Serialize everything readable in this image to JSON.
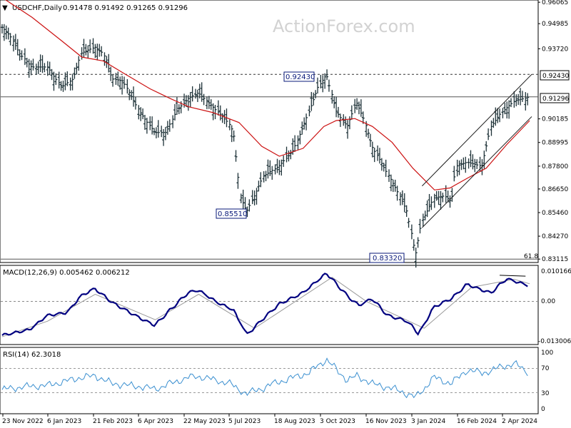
{
  "header": {
    "symbol_title": "USDCHF,Daily",
    "ohlc": "0.91478 0.91492 0.91265 0.91296"
  },
  "watermark": "ActionForex.com",
  "colors": {
    "price_bars": "#1e3238",
    "moving_average": "#cc1111",
    "channel": "#1a1a1a",
    "macd_line": "#000080",
    "macd_signal": "#999999",
    "rsi_line": "#3a8fd0",
    "label_text": "#0a1a7a"
  },
  "labels": {
    "swing_high": "0.92430",
    "swing_low_1": "0.85510",
    "swing_low_2": "0.83320",
    "fib_level": "61.8",
    "current_price_tag": "0.91296",
    "resistance_tag": "0.92430"
  },
  "macd_panel": {
    "title": "MACD(12,26,9) 0.005462 0.006212",
    "ticks": [
      "0.010166",
      "0.00",
      "-0.013006"
    ]
  },
  "rsi_panel": {
    "title": "RSI(14) 62.3018",
    "ticks": [
      "100",
      "70",
      "30",
      "0"
    ]
  },
  "chart_data": [
    {
      "type": "candlestick",
      "symbol": "USDCHF",
      "timeframe": "Daily",
      "y_ticks": [
        "0.96065",
        "0.94985",
        "0.93720",
        "0.92430",
        "0.91296",
        "0.90185",
        "0.88995",
        "0.87800",
        "0.86650",
        "0.85460",
        "0.84270",
        "0.83115"
      ],
      "ylim": [
        0.8305,
        0.9607
      ],
      "x_ticks": [
        "23 Nov 2022",
        "6 Jan 2023",
        "21 Feb 2023",
        "6 Apr 2023",
        "22 May 2023",
        "5 Jul 2023",
        "18 Aug 2023",
        "3 Oct 2023",
        "16 Nov 2023",
        "3 Jan 2024",
        "16 Feb 2024",
        "2 Apr 2024"
      ],
      "close_path": [
        {
          "date": "2022-11-23",
          "close": 0.948
        },
        {
          "date": "2022-12-01",
          "close": 0.944
        },
        {
          "date": "2022-12-10",
          "close": 0.935
        },
        {
          "date": "2022-12-22",
          "close": 0.928
        },
        {
          "date": "2023-01-06",
          "close": 0.928
        },
        {
          "date": "2023-01-20",
          "close": 0.918
        },
        {
          "date": "2023-01-31",
          "close": 0.922
        },
        {
          "date": "2023-02-08",
          "close": 0.935
        },
        {
          "date": "2023-02-21",
          "close": 0.938
        },
        {
          "date": "2023-03-01",
          "close": 0.935
        },
        {
          "date": "2023-03-10",
          "close": 0.922
        },
        {
          "date": "2023-03-20",
          "close": 0.921
        },
        {
          "date": "2023-04-06",
          "close": 0.905
        },
        {
          "date": "2023-04-20",
          "close": 0.895
        },
        {
          "date": "2023-05-01",
          "close": 0.895
        },
        {
          "date": "2023-05-10",
          "close": 0.905
        },
        {
          "date": "2023-05-22",
          "close": 0.912
        },
        {
          "date": "2023-06-01",
          "close": 0.915
        },
        {
          "date": "2023-06-15",
          "close": 0.908
        },
        {
          "date": "2023-06-30",
          "close": 0.9
        },
        {
          "date": "2023-07-05",
          "close": 0.895
        },
        {
          "date": "2023-07-12",
          "close": 0.862
        },
        {
          "date": "2023-07-18",
          "close": 0.8551
        },
        {
          "date": "2023-07-27",
          "close": 0.865
        },
        {
          "date": "2023-08-03",
          "close": 0.873
        },
        {
          "date": "2023-08-18",
          "close": 0.878
        },
        {
          "date": "2023-09-01",
          "close": 0.886
        },
        {
          "date": "2023-09-15",
          "close": 0.904
        },
        {
          "date": "2023-09-25",
          "close": 0.918
        },
        {
          "date": "2023-10-03",
          "close": 0.9243
        },
        {
          "date": "2023-10-12",
          "close": 0.906
        },
        {
          "date": "2023-10-23",
          "close": 0.898
        },
        {
          "date": "2023-11-01",
          "close": 0.91
        },
        {
          "date": "2023-11-08",
          "close": 0.902
        },
        {
          "date": "2023-11-16",
          "close": 0.888
        },
        {
          "date": "2023-11-28",
          "close": 0.877
        },
        {
          "date": "2023-12-10",
          "close": 0.866
        },
        {
          "date": "2023-12-20",
          "close": 0.855
        },
        {
          "date": "2023-12-28",
          "close": 0.8332
        },
        {
          "date": "2024-01-03",
          "close": 0.85
        },
        {
          "date": "2024-01-15",
          "close": 0.862
        },
        {
          "date": "2024-01-25",
          "close": 0.863
        },
        {
          "date": "2024-02-01",
          "close": 0.86
        },
        {
          "date": "2024-02-05",
          "close": 0.878
        },
        {
          "date": "2024-02-16",
          "close": 0.88
        },
        {
          "date": "2024-03-01",
          "close": 0.878
        },
        {
          "date": "2024-03-10",
          "close": 0.898
        },
        {
          "date": "2024-03-20",
          "close": 0.905
        },
        {
          "date": "2024-04-02",
          "close": 0.911
        },
        {
          "date": "2024-04-10",
          "close": 0.912
        },
        {
          "date": "2024-04-16",
          "close": 0.913
        }
      ],
      "moving_average": [
        {
          "date": "2022-11-23",
          "value": 0.963
        },
        {
          "date": "2022-12-22",
          "value": 0.953
        },
        {
          "date": "2023-01-20",
          "value": 0.941
        },
        {
          "date": "2023-02-08",
          "value": 0.933
        },
        {
          "date": "2023-03-01",
          "value": 0.931
        },
        {
          "date": "2023-03-20",
          "value": 0.925
        },
        {
          "date": "2023-04-15",
          "value": 0.917
        },
        {
          "date": "2023-05-05",
          "value": 0.912
        },
        {
          "date": "2023-05-22",
          "value": 0.908
        },
        {
          "date": "2023-06-15",
          "value": 0.905
        },
        {
          "date": "2023-07-10",
          "value": 0.9
        },
        {
          "date": "2023-08-01",
          "value": 0.888
        },
        {
          "date": "2023-08-18",
          "value": 0.883
        },
        {
          "date": "2023-09-10",
          "value": 0.887
        },
        {
          "date": "2023-09-30",
          "value": 0.898
        },
        {
          "date": "2023-10-12",
          "value": 0.901
        },
        {
          "date": "2023-10-30",
          "value": 0.902
        },
        {
          "date": "2023-11-16",
          "value": 0.898
        },
        {
          "date": "2023-12-05",
          "value": 0.89
        },
        {
          "date": "2023-12-25",
          "value": 0.877
        },
        {
          "date": "2024-01-15",
          "value": 0.866
        },
        {
          "date": "2024-01-30",
          "value": 0.867
        },
        {
          "date": "2024-02-16",
          "value": 0.872
        },
        {
          "date": "2024-03-05",
          "value": 0.877
        },
        {
          "date": "2024-03-25",
          "value": 0.889
        },
        {
          "date": "2024-04-16",
          "value": 0.901
        }
      ],
      "channel_lines": [
        [
          {
            "date": "2024-01-03",
            "value": 0.868
          },
          {
            "date": "2024-04-18",
            "value": 0.9243
          }
        ],
        [
          {
            "date": "2024-01-03",
            "value": 0.847
          },
          {
            "date": "2024-04-18",
            "value": 0.903
          }
        ]
      ],
      "horizontal_lines": [
        {
          "value": 0.9243,
          "style": "dashed"
        },
        {
          "value": 0.91296,
          "style": "solid"
        },
        {
          "value": 0.83115,
          "style": "solid"
        }
      ]
    },
    {
      "type": "line",
      "title": "MACD(12,26,9) 0.005462 0.006212",
      "ylim": [
        -0.0145,
        0.0117
      ],
      "series": [
        {
          "name": "MACD",
          "points": [
            {
              "date": "2022-11-23",
              "value": -0.012
            },
            {
              "date": "2022-12-20",
              "value": -0.01
            },
            {
              "date": "2023-01-06",
              "value": -0.005
            },
            {
              "date": "2023-01-25",
              "value": -0.004
            },
            {
              "date": "2023-02-08",
              "value": 0.002
            },
            {
              "date": "2023-02-21",
              "value": 0.0045
            },
            {
              "date": "2023-03-10",
              "value": -0.0005
            },
            {
              "date": "2023-04-06",
              "value": -0.006
            },
            {
              "date": "2023-04-20",
              "value": -0.0085
            },
            {
              "date": "2023-05-05",
              "value": -0.003
            },
            {
              "date": "2023-05-22",
              "value": 0.003
            },
            {
              "date": "2023-06-01",
              "value": 0.004
            },
            {
              "date": "2023-06-20",
              "value": -0.0005
            },
            {
              "date": "2023-07-05",
              "value": -0.003
            },
            {
              "date": "2023-07-18",
              "value": -0.0118
            },
            {
              "date": "2023-08-03",
              "value": -0.006
            },
            {
              "date": "2023-08-18",
              "value": -0.001
            },
            {
              "date": "2023-09-10",
              "value": 0.003
            },
            {
              "date": "2023-10-03",
              "value": 0.01
            },
            {
              "date": "2023-10-23",
              "value": 0.002
            },
            {
              "date": "2023-11-03",
              "value": -0.0015
            },
            {
              "date": "2023-11-16",
              "value": 0.001
            },
            {
              "date": "2023-12-01",
              "value": -0.005
            },
            {
              "date": "2023-12-20",
              "value": -0.007
            },
            {
              "date": "2023-12-31",
              "value": -0.0115
            },
            {
              "date": "2024-01-15",
              "value": -0.002
            },
            {
              "date": "2024-02-01",
              "value": 0.001
            },
            {
              "date": "2024-02-16",
              "value": 0.006
            },
            {
              "date": "2024-03-01",
              "value": 0.004
            },
            {
              "date": "2024-03-10",
              "value": 0.003
            },
            {
              "date": "2024-03-25",
              "value": 0.008
            },
            {
              "date": "2024-04-16",
              "value": 0.0055
            }
          ]
        },
        {
          "name": "Signal",
          "points": [
            {
              "date": "2022-11-23",
              "value": -0.0125
            },
            {
              "date": "2023-01-06",
              "value": -0.007
            },
            {
              "date": "2023-02-21",
              "value": 0.0025
            },
            {
              "date": "2023-04-20",
              "value": -0.0065
            },
            {
              "date": "2023-06-01",
              "value": 0.0025
            },
            {
              "date": "2023-07-25",
              "value": -0.0095
            },
            {
              "date": "2023-10-08",
              "value": 0.0085
            },
            {
              "date": "2023-11-10",
              "value": 0.0
            },
            {
              "date": "2024-01-05",
              "value": -0.0095
            },
            {
              "date": "2024-02-20",
              "value": 0.005
            },
            {
              "date": "2024-04-01",
              "value": 0.0078
            },
            {
              "date": "2024-04-16",
              "value": 0.0062
            }
          ]
        }
      ],
      "y_ticks": [
        "0.010166",
        "0.00",
        "-0.013006"
      ]
    },
    {
      "type": "line",
      "title": "RSI(14) 62.3018",
      "ylim": [
        0,
        100
      ],
      "levels": [
        70,
        30
      ],
      "series": [
        {
          "name": "RSI(14)",
          "points": [
            {
              "date": "2022-11-23",
              "value": 35
            },
            {
              "date": "2022-12-15",
              "value": 40
            },
            {
              "date": "2023-01-06",
              "value": 42
            },
            {
              "date": "2023-02-08",
              "value": 55
            },
            {
              "date": "2023-02-21",
              "value": 58
            },
            {
              "date": "2023-03-10",
              "value": 45
            },
            {
              "date": "2023-04-06",
              "value": 40
            },
            {
              "date": "2023-04-20",
              "value": 36
            },
            {
              "date": "2023-05-22",
              "value": 55
            },
            {
              "date": "2023-06-01",
              "value": 57
            },
            {
              "date": "2023-06-30",
              "value": 46
            },
            {
              "date": "2023-07-18",
              "value": 28
            },
            {
              "date": "2023-08-18",
              "value": 48
            },
            {
              "date": "2023-09-15",
              "value": 62
            },
            {
              "date": "2023-10-03",
              "value": 85
            },
            {
              "date": "2023-10-23",
              "value": 50
            },
            {
              "date": "2023-11-01",
              "value": 58
            },
            {
              "date": "2023-11-16",
              "value": 45
            },
            {
              "date": "2023-12-10",
              "value": 35
            },
            {
              "date": "2023-12-28",
              "value": 22
            },
            {
              "date": "2024-01-15",
              "value": 55
            },
            {
              "date": "2024-02-01",
              "value": 45
            },
            {
              "date": "2024-02-16",
              "value": 68
            },
            {
              "date": "2024-03-01",
              "value": 62
            },
            {
              "date": "2024-03-25",
              "value": 75
            },
            {
              "date": "2024-04-02",
              "value": 78
            },
            {
              "date": "2024-04-16",
              "value": 62
            }
          ]
        }
      ],
      "y_ticks": [
        "100",
        "70",
        "30",
        "0"
      ]
    }
  ]
}
